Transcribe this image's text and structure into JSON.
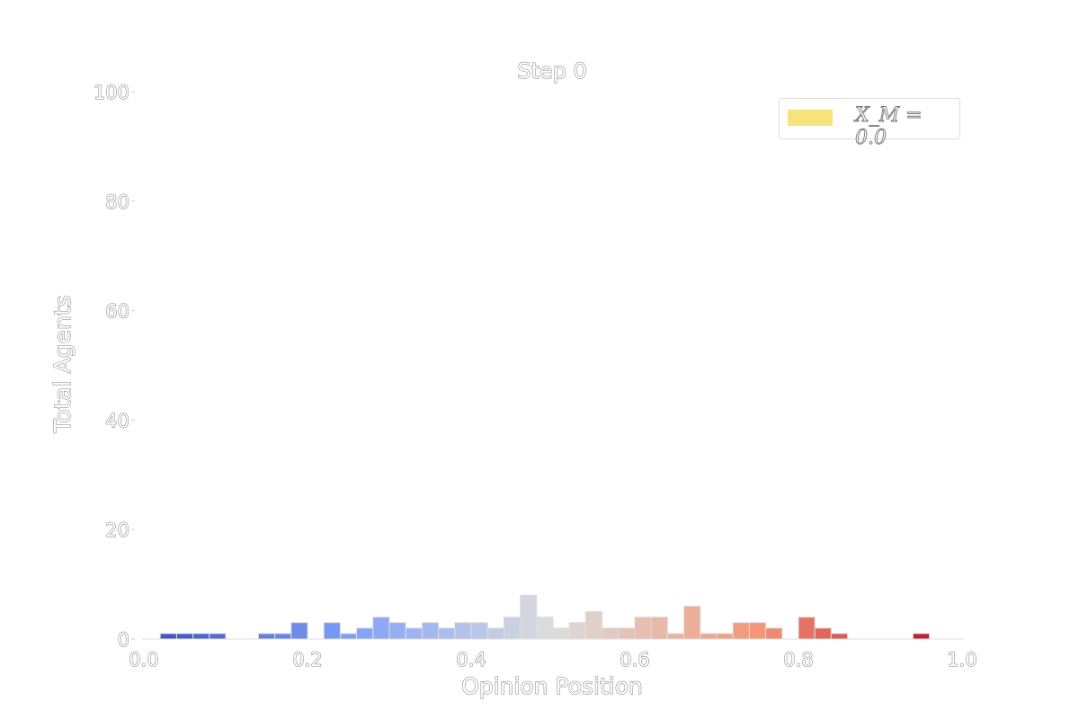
{
  "chart_data": {
    "type": "bar",
    "title": "Step 0",
    "xlabel": "Opinion Position",
    "ylabel": "Total Agents",
    "xlim": [
      0.0,
      1.0
    ],
    "ylim": [
      0,
      100
    ],
    "xticks": [
      "0.0",
      "0.2",
      "0.4",
      "0.6",
      "0.8",
      "1.0"
    ],
    "yticks": [
      "0",
      "20",
      "40",
      "60",
      "80",
      "100"
    ],
    "bin_width": 0.02,
    "bins_start": [
      0.0,
      0.02,
      0.04,
      0.06,
      0.08,
      0.1,
      0.12,
      0.14,
      0.16,
      0.18,
      0.2,
      0.22,
      0.24,
      0.26,
      0.28,
      0.3,
      0.32,
      0.34,
      0.36,
      0.38,
      0.4,
      0.42,
      0.44,
      0.46,
      0.48,
      0.5,
      0.52,
      0.54,
      0.56,
      0.58,
      0.6,
      0.62,
      0.64,
      0.66,
      0.68,
      0.7,
      0.72,
      0.74,
      0.76,
      0.78,
      0.8,
      0.82,
      0.84,
      0.86,
      0.88,
      0.9,
      0.92,
      0.94,
      0.96,
      0.98
    ],
    "values": [
      0,
      1,
      1,
      1,
      1,
      0,
      0,
      1,
      1,
      3,
      0,
      3,
      1,
      2,
      4,
      3,
      2,
      3,
      2,
      3,
      3,
      2,
      4,
      8,
      4,
      2,
      3,
      5,
      2,
      2,
      4,
      4,
      1,
      6,
      1,
      1,
      3,
      3,
      2,
      0,
      4,
      2,
      1,
      0,
      0,
      0,
      0,
      1,
      0,
      0
    ],
    "colormap": "coolwarm",
    "grid": false,
    "legend": {
      "placement": "top-right",
      "label": "X_M = 0.0",
      "color": "#f8e27a"
    }
  }
}
